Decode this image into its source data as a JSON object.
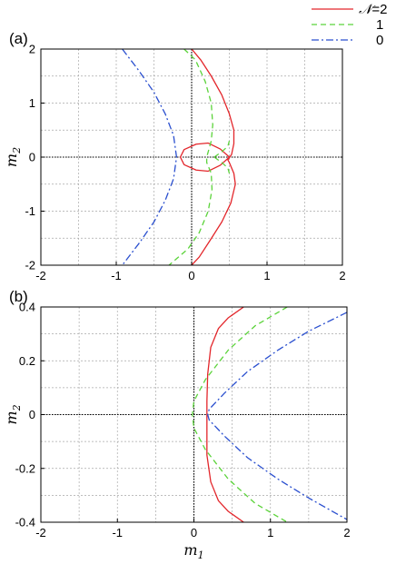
{
  "legend": {
    "placement": "top-right, outside plot",
    "entries": [
      {
        "label_prefix": "𝒩",
        "label": "=2",
        "color": "#e3262b",
        "style": "solid"
      },
      {
        "label_prefix": "",
        "label": "1",
        "color": "#5bd33a",
        "style": "dashed"
      },
      {
        "label_prefix": "",
        "label": "0",
        "color": "#2a4fcf",
        "style": "dash-dot"
      }
    ]
  },
  "chart_data": [
    {
      "type": "line",
      "panel_label": "(a)",
      "xlabel": "",
      "ylabel": "m",
      "ylabel_sub": "2",
      "xlim": [
        -2,
        2
      ],
      "ylim": [
        -2,
        2
      ],
      "xticks": [
        -2,
        -1,
        0,
        1,
        2
      ],
      "yticks": [
        -2,
        -1,
        0,
        1,
        2
      ],
      "xtick_labels": [
        "-2",
        "-1",
        "0",
        "1",
        "2"
      ],
      "ytick_labels": [
        "-2",
        "-1",
        "0",
        "1",
        "2"
      ],
      "grid": true,
      "zero_lines": true,
      "series": [
        {
          "name": "𝒩=2",
          "color": "#e3262b",
          "style": "solid",
          "segments": [
            [
              [
                0.0,
                2.0
              ],
              [
                0.12,
                1.8
              ],
              [
                0.26,
                1.5
              ],
              [
                0.4,
                1.15
              ],
              [
                0.5,
                0.8
              ],
              [
                0.56,
                0.5
              ],
              [
                0.56,
                0.25
              ],
              [
                0.53,
                0.05
              ],
              [
                0.48,
                -0.05
              ],
              [
                0.5,
                -0.1
              ],
              [
                0.56,
                -0.3
              ],
              [
                0.58,
                -0.5
              ],
              [
                0.52,
                -0.85
              ],
              [
                0.4,
                -1.2
              ],
              [
                0.24,
                -1.55
              ],
              [
                0.1,
                -1.85
              ],
              [
                0.0,
                -2.0
              ]
            ],
            [
              [
                0.5,
                0.0
              ],
              [
                0.38,
                0.15
              ],
              [
                0.22,
                0.26
              ],
              [
                0.06,
                0.24
              ],
              [
                -0.1,
                0.14
              ],
              [
                -0.15,
                0.0
              ],
              [
                -0.1,
                -0.14
              ],
              [
                0.06,
                -0.24
              ],
              [
                0.22,
                -0.26
              ],
              [
                0.38,
                -0.15
              ],
              [
                0.5,
                0.0
              ]
            ]
          ]
        },
        {
          "name": "1",
          "color": "#5bd33a",
          "style": "dashed",
          "segments": [
            [
              [
                -0.1,
                2.0
              ],
              [
                0.05,
                1.8
              ],
              [
                0.18,
                1.4
              ],
              [
                0.26,
                1.0
              ],
              [
                0.28,
                0.6
              ],
              [
                0.26,
                0.3
              ],
              [
                0.22,
                0.1
              ],
              [
                0.2,
                0.0
              ],
              [
                0.2,
                -0.1
              ],
              [
                0.26,
                -0.3
              ],
              [
                0.27,
                -0.6
              ],
              [
                0.22,
                -1.0
              ],
              [
                0.1,
                -1.4
              ],
              [
                -0.05,
                -1.7
              ],
              [
                -0.3,
                -2.0
              ]
            ],
            [
              [
                0.3,
                0.0
              ],
              [
                0.4,
                0.1
              ],
              [
                0.48,
                0.2
              ],
              [
                0.5,
                0.3
              ]
            ],
            [
              [
                0.3,
                0.0
              ],
              [
                0.4,
                -0.1
              ],
              [
                0.48,
                -0.2
              ],
              [
                0.5,
                -0.3
              ]
            ]
          ]
        },
        {
          "name": "0",
          "color": "#2a4fcf",
          "style": "dash-dot",
          "segments": [
            [
              [
                -0.92,
                2.0
              ],
              [
                -0.7,
                1.6
              ],
              [
                -0.5,
                1.2
              ],
              [
                -0.35,
                0.8
              ],
              [
                -0.24,
                0.4
              ],
              [
                -0.2,
                0.0
              ],
              [
                -0.24,
                -0.4
              ],
              [
                -0.35,
                -0.8
              ],
              [
                -0.5,
                -1.2
              ],
              [
                -0.7,
                -1.6
              ],
              [
                -0.92,
                -2.0
              ]
            ]
          ]
        }
      ]
    },
    {
      "type": "line",
      "panel_label": "(b)",
      "xlabel": "m",
      "xlabel_sub": "1",
      "ylabel": "m",
      "ylabel_sub": "2",
      "xlim": [
        -2,
        2
      ],
      "ylim": [
        -0.4,
        0.4
      ],
      "xticks": [
        -2,
        -1,
        0,
        1,
        2
      ],
      "yticks": [
        -0.4,
        -0.2,
        0,
        0.2,
        0.4
      ],
      "xtick_labels": [
        "-2",
        "-1",
        "0",
        "1",
        "2"
      ],
      "ytick_labels": [
        "-0.4",
        "-0.2",
        "0",
        "0.2",
        "0.4"
      ],
      "grid": true,
      "zero_lines": true,
      "series": [
        {
          "name": "𝒩=2",
          "color": "#e3262b",
          "style": "solid",
          "segments": [
            [
              [
                0.65,
                0.4
              ],
              [
                0.45,
                0.36
              ],
              [
                0.32,
                0.32
              ],
              [
                0.22,
                0.25
              ],
              [
                0.18,
                0.15
              ],
              [
                0.17,
                0.05
              ],
              [
                0.17,
                -0.05
              ],
              [
                0.17,
                -0.15
              ],
              [
                0.22,
                -0.25
              ],
              [
                0.32,
                -0.32
              ],
              [
                0.45,
                -0.36
              ],
              [
                0.65,
                -0.4
              ]
            ]
          ]
        },
        {
          "name": "1",
          "color": "#5bd33a",
          "style": "dashed",
          "segments": [
            [
              [
                1.22,
                0.4
              ],
              [
                0.8,
                0.33
              ],
              [
                0.45,
                0.24
              ],
              [
                0.15,
                0.13
              ],
              [
                0.0,
                0.05
              ],
              [
                -0.02,
                0.0
              ],
              [
                0.0,
                -0.05
              ],
              [
                0.15,
                -0.13
              ],
              [
                0.45,
                -0.24
              ],
              [
                0.8,
                -0.33
              ],
              [
                1.22,
                -0.4
              ]
            ]
          ]
        },
        {
          "name": "0",
          "color": "#2a4fcf",
          "style": "dash-dot",
          "segments": [
            [
              [
                2.0,
                0.38
              ],
              [
                1.5,
                0.31
              ],
              [
                1.1,
                0.24
              ],
              [
                0.7,
                0.16
              ],
              [
                0.4,
                0.08
              ],
              [
                0.2,
                0.02
              ],
              [
                0.18,
                0.0
              ],
              [
                0.2,
                -0.02
              ],
              [
                0.4,
                -0.08
              ],
              [
                0.7,
                -0.16
              ],
              [
                1.1,
                -0.24
              ],
              [
                1.5,
                -0.31
              ],
              [
                2.0,
                -0.39
              ]
            ]
          ]
        }
      ]
    }
  ]
}
